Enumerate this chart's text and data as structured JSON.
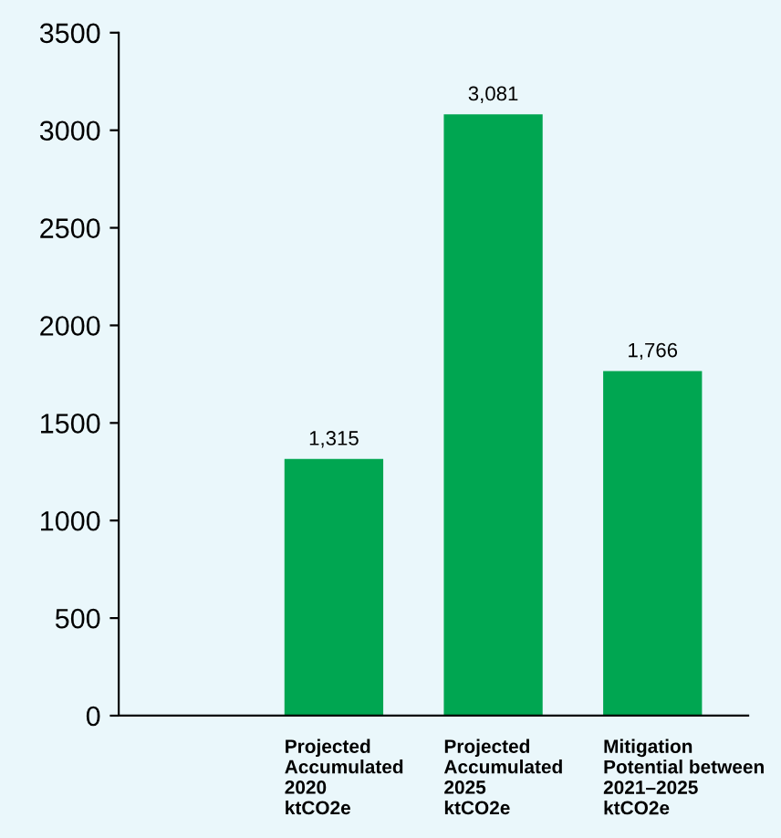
{
  "chart_data": {
    "type": "bar",
    "categories": [
      null,
      "Projected\nAccumulated\n2020\nktCO2e",
      "Projected\nAccumulated\n2025\nktCO2e",
      "Mitigation\nPotential between\n2021–2025\nktCO2e"
    ],
    "values": [
      null,
      1315,
      3081,
      1766
    ],
    "value_labels": [
      null,
      "1,315",
      "3,081",
      "1,766"
    ],
    "color": "#00a651",
    "ylim": [
      0,
      3500
    ],
    "yticks": [
      0,
      500,
      1000,
      1500,
      2000,
      2500,
      3000,
      3500
    ],
    "grid": false,
    "legend": false
  }
}
